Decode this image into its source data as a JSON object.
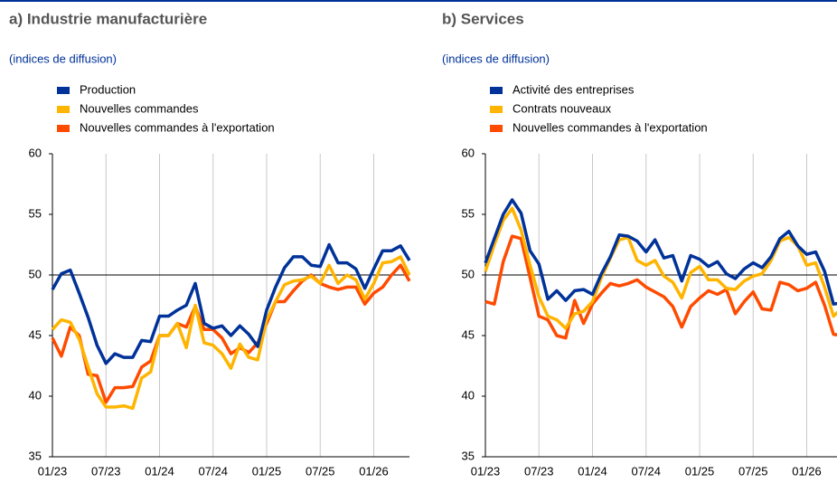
{
  "chart_data": [
    {
      "type": "line",
      "title": "a) Industrie manufacturière",
      "subtitle": "(indices de diffusion)",
      "categories": [
        "01/23",
        null,
        null,
        null,
        null,
        null,
        "07/23",
        null,
        null,
        null,
        null,
        null,
        "01/24",
        null,
        null,
        null,
        null,
        null,
        "07/24",
        null,
        null,
        null,
        null,
        null,
        "01/25",
        null,
        null,
        null,
        null,
        null,
        "07/25",
        null,
        null,
        null,
        null,
        null,
        "01/26",
        null,
        null,
        null,
        null
      ],
      "ylim": [
        35,
        60
      ],
      "yticks": [
        35,
        40,
        45,
        50,
        55,
        60
      ],
      "refline": 50,
      "series": [
        {
          "name": "Production",
          "color": "#003299",
          "values": [
            48.8,
            50.1,
            50.4,
            48.5,
            46.5,
            44.2,
            42.7,
            43.5,
            43.2,
            43.2,
            44.6,
            44.5,
            46.6,
            46.6,
            47.1,
            47.5,
            49.3,
            46.0,
            45.6,
            45.8,
            45.0,
            45.8,
            45.1,
            44.1,
            47.1,
            49.0,
            50.6,
            51.5,
            51.5,
            50.8,
            50.7,
            52.5,
            51.0,
            51.0,
            50.5,
            48.9,
            50.5,
            52.0,
            52.0,
            52.4,
            51.2
          ]
        },
        {
          "name": "Nouvelles commandes",
          "color": "#ffb400",
          "values": [
            45.5,
            46.3,
            46.1,
            44.7,
            42.4,
            40.2,
            39.1,
            39.1,
            39.2,
            39.0,
            41.5,
            42.0,
            45.0,
            45.0,
            46.0,
            44.0,
            47.5,
            44.4,
            44.2,
            43.5,
            42.3,
            44.3,
            43.2,
            43.0,
            46.3,
            47.8,
            49.2,
            49.5,
            49.6,
            49.9,
            49.3,
            50.8,
            49.3,
            50.0,
            49.6,
            48.0,
            49.3,
            51.0,
            51.1,
            51.5,
            50.0
          ]
        },
        {
          "name": "Nouvelles commandes à l'exportation",
          "color": "#ff4b00",
          "values": [
            44.8,
            43.3,
            45.7,
            45.0,
            41.8,
            41.7,
            39.5,
            40.7,
            40.7,
            40.8,
            42.4,
            42.9,
            45.0,
            45.0,
            46.0,
            45.7,
            47.4,
            45.5,
            45.5,
            44.8,
            43.5,
            44.0,
            43.6,
            44.4,
            46.0,
            47.8,
            47.8,
            48.7,
            49.5,
            50.0,
            49.3,
            49.0,
            48.8,
            49.0,
            49.0,
            47.6,
            48.5,
            49.0,
            50.0,
            50.8,
            49.5
          ]
        }
      ]
    },
    {
      "type": "line",
      "title": "b) Services",
      "subtitle": "(indices de diffusion)",
      "categories": [
        "01/23",
        null,
        null,
        null,
        null,
        null,
        "07/23",
        null,
        null,
        null,
        null,
        null,
        "01/24",
        null,
        null,
        null,
        null,
        null,
        "07/24",
        null,
        null,
        null,
        null,
        null,
        "01/25",
        null,
        null,
        null,
        null,
        null,
        "07/25",
        null,
        null,
        null,
        null,
        null,
        "01/26",
        null,
        null,
        null,
        null
      ],
      "ylim": [
        35,
        60
      ],
      "yticks": [
        35,
        40,
        45,
        50,
        55,
        60
      ],
      "refline": 50,
      "series": [
        {
          "name": "Activité des entreprises",
          "color": "#003299",
          "values": [
            51.0,
            53.0,
            55.0,
            56.2,
            55.1,
            52.0,
            50.9,
            48.0,
            48.7,
            47.9,
            48.7,
            48.8,
            48.4,
            50.1,
            51.5,
            53.3,
            53.2,
            52.8,
            51.9,
            52.9,
            51.4,
            51.6,
            49.5,
            51.6,
            51.3,
            50.7,
            51.1,
            50.1,
            49.7,
            50.5,
            51.0,
            50.6,
            51.5,
            53.0,
            53.6,
            52.4,
            51.7,
            51.9,
            50.3,
            47.6,
            47.7
          ]
        },
        {
          "name": "Contrats nouveaux",
          "color": "#ffb400",
          "values": [
            50.3,
            52.5,
            54.5,
            55.5,
            53.7,
            50.8,
            48.2,
            46.6,
            46.3,
            45.6,
            46.8,
            47.0,
            47.8,
            49.8,
            51.4,
            52.9,
            53.1,
            51.2,
            50.8,
            51.2,
            49.9,
            49.4,
            48.1,
            50.2,
            50.7,
            49.6,
            49.6,
            48.9,
            48.8,
            49.5,
            49.9,
            50.1,
            51.2,
            52.8,
            53.1,
            52.4,
            50.8,
            51.0,
            49.0,
            46.6,
            47.3
          ]
        },
        {
          "name": "Nouvelles commandes à l'exportation",
          "color": "#ff4b00",
          "values": [
            47.8,
            47.6,
            51.1,
            53.2,
            53.0,
            49.8,
            46.6,
            46.3,
            45.0,
            44.8,
            47.9,
            46.0,
            47.6,
            48.5,
            49.3,
            49.1,
            49.3,
            49.6,
            49.0,
            48.6,
            48.2,
            47.4,
            45.7,
            47.4,
            48.1,
            48.7,
            48.4,
            48.8,
            46.8,
            47.8,
            48.6,
            47.2,
            47.1,
            49.4,
            49.2,
            48.7,
            48.9,
            49.4,
            47.5,
            45.1,
            45.0
          ]
        }
      ]
    }
  ]
}
